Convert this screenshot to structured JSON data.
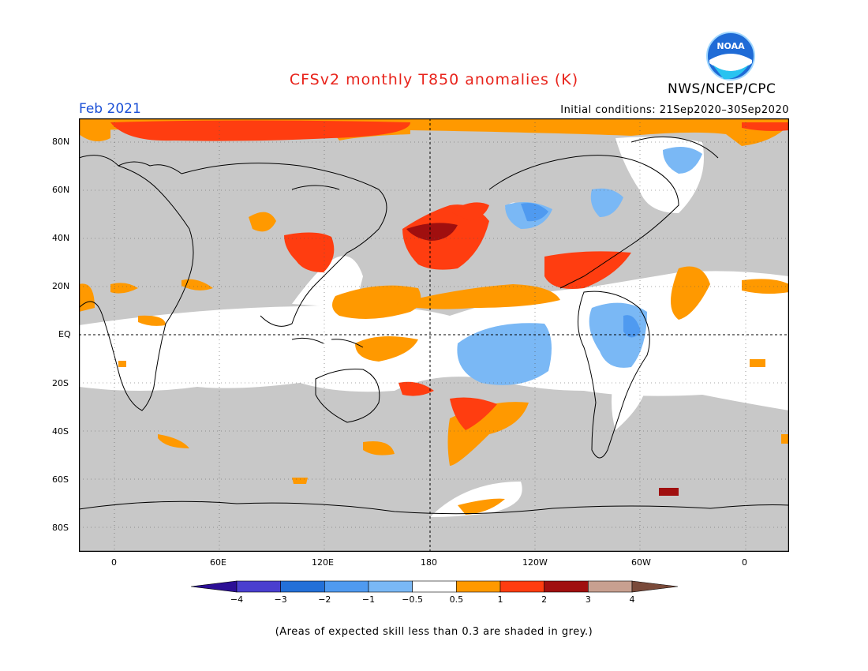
{
  "header": {
    "title": "CFSv2 monthly T850 anomalies (K)",
    "month": "Feb 2021",
    "initial_conditions": "Initial conditions: 21Sep2020–30Sep2020",
    "agency": "NWS/NCEP/CPC",
    "logo_text": "NOAA"
  },
  "map": {
    "lat_labels": [
      "80N",
      "60N",
      "40N",
      "20N",
      "EQ",
      "20S",
      "40S",
      "60S",
      "80S"
    ],
    "lon_labels": [
      "0",
      "60E",
      "120E",
      "180",
      "120W",
      "60W",
      "0"
    ],
    "colors": {
      "skill_mask": "#c8c8c8",
      "land_line": "#000000",
      "background": "#ffffff"
    }
  },
  "legend": {
    "tick_labels": [
      "−4",
      "−3",
      "−2",
      "−1",
      "−0.5",
      "0.5",
      "1",
      "2",
      "3",
      "4"
    ],
    "colors": [
      "#2c0f96",
      "#4a3fcf",
      "#2370d8",
      "#4f9af0",
      "#7ab8f5",
      "#ffffff",
      "#ff9900",
      "#ff3d10",
      "#a00f0f",
      "#c8a090",
      "#7a4a3a"
    ]
  },
  "footnote": "(Areas of expected skill less than 0.3 are shaded in grey.)"
}
